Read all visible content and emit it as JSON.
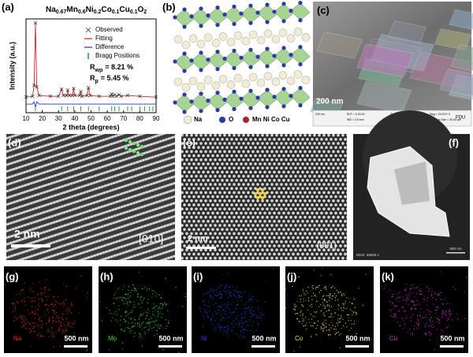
{
  "chart_data": {
    "type": "line",
    "panel_label": "(a)",
    "title_segments": [
      {
        "text": "Na",
        "sub": "0.67"
      },
      {
        "text": "Mn",
        "sub": "0.6"
      },
      {
        "text": "Ni",
        "sub": "0.2"
      },
      {
        "text": "Co",
        "sub": "0.1"
      },
      {
        "text": "Cu",
        "sub": "0.1"
      },
      {
        "text": "O",
        "sub": "2"
      }
    ],
    "xlabel": "2 theta (degrees)",
    "ylabel": "Intensity (a.u.)",
    "xlim": [
      10,
      90
    ],
    "xticks": [
      10,
      20,
      30,
      40,
      50,
      60,
      70,
      80,
      90
    ],
    "ylim": [
      -15,
      105
    ],
    "x": [
      10,
      14,
      15,
      15.8,
      16.6,
      18,
      25,
      30,
      31.9,
      33,
      35,
      35.6,
      36.5,
      38.5,
      39.3,
      40,
      43,
      43.7,
      44.5,
      47.5,
      48.4,
      49.5,
      55,
      62,
      62.7,
      63.5,
      64.5,
      65.5,
      67.2,
      68.5,
      72.5,
      80,
      90
    ],
    "series": [
      {
        "name": "Observed",
        "color": "#333333",
        "values": [
          5,
          6,
          20,
          100,
          18,
          7,
          6,
          6,
          15,
          7,
          7,
          14,
          7,
          7,
          16,
          7,
          7,
          12,
          6,
          7,
          17,
          7,
          6,
          6,
          9,
          6,
          8,
          6,
          8,
          6,
          7,
          6,
          5
        ]
      },
      {
        "name": "Fitting",
        "color": "#e02020",
        "values": [
          5,
          6,
          20,
          100,
          18,
          7,
          6,
          6,
          15,
          7,
          7,
          14,
          7,
          7,
          16,
          7,
          7,
          12,
          6,
          7,
          17,
          7,
          6,
          6,
          9,
          6,
          8,
          6,
          8,
          6,
          7,
          6,
          5
        ]
      },
      {
        "name": "Difference",
        "color": "#2030d0",
        "values": [
          -4,
          -4,
          -1,
          -8,
          -1,
          -4,
          -4,
          -4,
          -4,
          -4,
          -4,
          -4,
          -4,
          -4,
          -4,
          -4,
          -4,
          -4,
          -4,
          -4,
          -4,
          -4,
          -4,
          -4,
          -4,
          -4,
          -4,
          -4,
          -4,
          -4,
          -4,
          -4,
          -4
        ]
      }
    ],
    "bragg": {
      "name": "Bragg Positions",
      "color": "#20a020",
      "positions": [
        15.8,
        31.9,
        35.6,
        39.3,
        43.7,
        48.4,
        55,
        62.7,
        64.5,
        67.2,
        72.5,
        75,
        80,
        83,
        86,
        88
      ]
    },
    "annotations": [
      {
        "symbol": "R",
        "sub": "wp",
        "text": "= 8.21 %"
      },
      {
        "symbol": "R",
        "sub": "p",
        "text": "= 5.45 %"
      }
    ]
  },
  "panels": {
    "b": {
      "label": "(b)",
      "legend": [
        {
          "text": "Na",
          "color": "#f0ecd8"
        },
        {
          "text": "O",
          "color": "#2a3aa8"
        },
        {
          "text": "Mn Ni Co Cu",
          "color": "#b02020"
        }
      ]
    },
    "c": {
      "label": "(c)",
      "scale_bar": "200 nm",
      "info": [
        "200 nm",
        "EHT = 5.00 kV",
        "WD = 3.5 mm",
        "Signal A = InLens",
        "Date: 23 Dec 2018",
        "Mag = 20.00 K X",
        "Aperture Size = 30.00 µm",
        "FDU"
      ]
    },
    "d": {
      "label": "(d)",
      "scale_bar": "2 nm",
      "zone_axis": "[010]"
    },
    "e": {
      "label": "(e)",
      "scale_bar": "2 nm",
      "zone_axis": "[001]"
    },
    "f": {
      "label": "(f)",
      "mag": "MAG: 28500 x",
      "scale_bar": "500 nm"
    },
    "maps": [
      {
        "label": "(g)",
        "element": "Na",
        "scale_bar": "500 nm",
        "color": "#ff2020"
      },
      {
        "label": "(h)",
        "element": "Mn",
        "scale_bar": "500 nm",
        "color": "#20e020"
      },
      {
        "label": "(i)",
        "element": "Ni",
        "scale_bar": "500 nm",
        "color": "#2040ff"
      },
      {
        "label": "(j)",
        "element": "Co",
        "scale_bar": "500 nm",
        "color": "#f0e020"
      },
      {
        "label": "(k)",
        "element": "Cu",
        "scale_bar": "500 nm",
        "color": "#e020e0"
      }
    ]
  }
}
